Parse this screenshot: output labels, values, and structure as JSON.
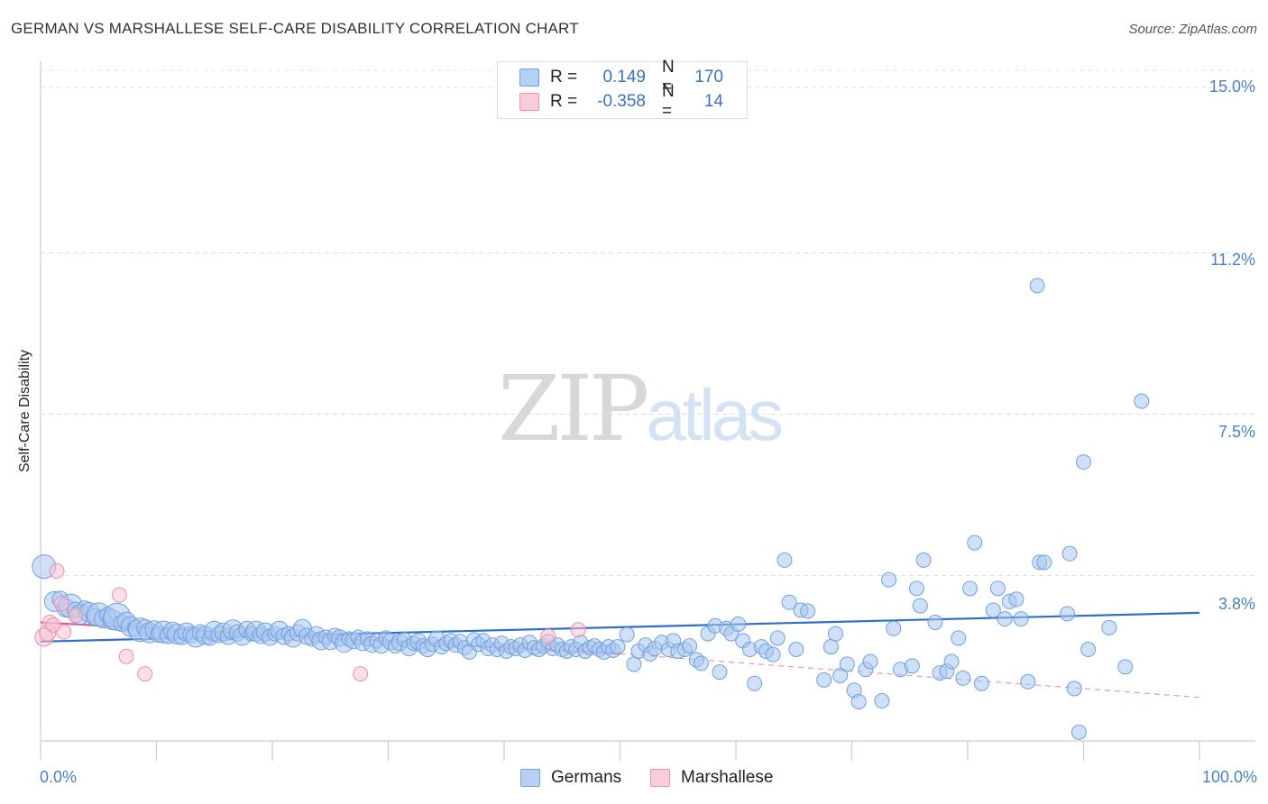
{
  "title": "GERMAN VS MARSHALLESE SELF-CARE DISABILITY CORRELATION CHART",
  "source": "Source: ZipAtlas.com",
  "watermark": {
    "zip": "ZIP",
    "atlas": "atlas"
  },
  "chart_data": {
    "type": "scatter",
    "title": "GERMAN VS MARSHALLESE SELF-CARE DISABILITY CORRELATION CHART",
    "xlabel": "",
    "ylabel": "Self-Care Disability",
    "xlim": [
      0,
      100
    ],
    "ylim": [
      0,
      15.5
    ],
    "y_ticks": [
      {
        "value": 15.0,
        "label": "15.0%"
      },
      {
        "value": 11.2,
        "label": "11.2%"
      },
      {
        "value": 7.5,
        "label": "7.5%"
      },
      {
        "value": 3.8,
        "label": "3.8%"
      }
    ],
    "x_tick_labels": {
      "left": "0.0%",
      "right": "100.0%"
    },
    "grid": true,
    "legend": [
      {
        "name": "Germans",
        "color": "#6fa0e0",
        "fill": "#aac7f0",
        "R_label": "R =",
        "R": "0.149",
        "N_label": "N =",
        "N": "170"
      },
      {
        "name": "Marshallese",
        "color": "#ec90ad",
        "fill": "#f7c3d3",
        "R_label": "R =",
        "R": "-0.358",
        "N_label": "N =",
        "N": "14"
      }
    ],
    "series": [
      {
        "name": "Germans",
        "color": "#6fa0e0",
        "trend": {
          "x": [
            0,
            100
          ],
          "y": [
            2.28,
            2.94
          ]
        },
        "points": [
          [
            0.3,
            4.0,
            14
          ],
          [
            1.2,
            3.2,
            12
          ],
          [
            1.7,
            3.25,
            10
          ],
          [
            2.2,
            3.05,
            11
          ],
          [
            2.6,
            3.1,
            14
          ],
          [
            3.0,
            3.0,
            10
          ],
          [
            3.4,
            2.9,
            12
          ],
          [
            3.8,
            3.05,
            9
          ],
          [
            4.2,
            2.95,
            12
          ],
          [
            4.6,
            2.85,
            10
          ],
          [
            5.0,
            2.9,
            14
          ],
          [
            5.4,
            2.8,
            11
          ],
          [
            5.8,
            2.88,
            10
          ],
          [
            6.2,
            2.78,
            12
          ],
          [
            6.6,
            2.85,
            16
          ],
          [
            7.0,
            2.7,
            10
          ],
          [
            7.4,
            2.75,
            11
          ],
          [
            7.8,
            2.62,
            12
          ],
          [
            8.2,
            2.58,
            10
          ],
          [
            8.6,
            2.55,
            14
          ],
          [
            9.0,
            2.6,
            10
          ],
          [
            9.4,
            2.48,
            12
          ],
          [
            9.8,
            2.55,
            11
          ],
          [
            10.2,
            2.45,
            10
          ],
          [
            10.6,
            2.5,
            13
          ],
          [
            11.0,
            2.42,
            10
          ],
          [
            11.4,
            2.52,
            11
          ],
          [
            11.8,
            2.45,
            12
          ],
          [
            12.2,
            2.4,
            10
          ],
          [
            12.6,
            2.5,
            11
          ],
          [
            13.0,
            2.44,
            10
          ],
          [
            13.4,
            2.38,
            12
          ],
          [
            13.8,
            2.48,
            10
          ],
          [
            14.2,
            2.42,
            11
          ],
          [
            14.6,
            2.36,
            9
          ],
          [
            15.0,
            2.52,
            12
          ],
          [
            15.4,
            2.44,
            10
          ],
          [
            15.8,
            2.5,
            11
          ],
          [
            16.2,
            2.4,
            10
          ],
          [
            16.6,
            2.55,
            12
          ],
          [
            17.0,
            2.48,
            10
          ],
          [
            17.4,
            2.4,
            11
          ],
          [
            17.8,
            2.56,
            10
          ],
          [
            18.2,
            2.46,
            9
          ],
          [
            18.6,
            2.52,
            12
          ],
          [
            19.0,
            2.42,
            10
          ],
          [
            19.4,
            2.5,
            11
          ],
          [
            19.8,
            2.38,
            10
          ],
          [
            20.2,
            2.46,
            9
          ],
          [
            20.6,
            2.54,
            11
          ],
          [
            21.0,
            2.4,
            10
          ],
          [
            21.4,
            2.46,
            9
          ],
          [
            21.8,
            2.36,
            11
          ],
          [
            22.2,
            2.48,
            10
          ],
          [
            22.6,
            2.58,
            11
          ],
          [
            23.0,
            2.4,
            10
          ],
          [
            23.4,
            2.34,
            9
          ],
          [
            23.8,
            2.44,
            10
          ],
          [
            24.2,
            2.3,
            11
          ],
          [
            24.6,
            2.38,
            9
          ],
          [
            25.0,
            2.28,
            10
          ],
          [
            25.4,
            2.42,
            9
          ],
          [
            25.8,
            2.36,
            10
          ],
          [
            26.2,
            2.24,
            11
          ],
          [
            26.6,
            2.34,
            9
          ],
          [
            27.0,
            2.3,
            10
          ],
          [
            27.4,
            2.38,
            9
          ],
          [
            27.8,
            2.26,
            10
          ],
          [
            28.2,
            2.34,
            9
          ],
          [
            28.6,
            2.22,
            10
          ],
          [
            29.0,
            2.3,
            9
          ],
          [
            29.4,
            2.2,
            10
          ],
          [
            29.8,
            2.36,
            9
          ],
          [
            30.2,
            2.28,
            10
          ],
          [
            30.6,
            2.18,
            9
          ],
          [
            31.0,
            2.26,
            10
          ],
          [
            31.4,
            2.32,
            9
          ],
          [
            31.8,
            2.14,
            10
          ],
          [
            32.2,
            2.24,
            9
          ],
          [
            32.6,
            2.28,
            10
          ],
          [
            33.0,
            2.18,
            9
          ],
          [
            33.4,
            2.12,
            10
          ],
          [
            33.8,
            2.22,
            9
          ],
          [
            34.2,
            2.34,
            10
          ],
          [
            34.6,
            2.16,
            9
          ],
          [
            35.0,
            2.24,
            9
          ],
          [
            35.4,
            2.3,
            9
          ],
          [
            35.8,
            2.2,
            9
          ],
          [
            36.2,
            2.28,
            9
          ],
          [
            36.6,
            2.14,
            9
          ],
          [
            37.0,
            2.04,
            9
          ],
          [
            37.4,
            2.32,
            9
          ],
          [
            37.8,
            2.22,
            9
          ],
          [
            38.2,
            2.3,
            9
          ],
          [
            38.6,
            2.12,
            9
          ],
          [
            39.0,
            2.2,
            9
          ],
          [
            39.4,
            2.1,
            9
          ],
          [
            39.8,
            2.24,
            9
          ],
          [
            40.2,
            2.06,
            9
          ],
          [
            40.6,
            2.16,
            9
          ],
          [
            41.0,
            2.12,
            9
          ],
          [
            41.4,
            2.2,
            9
          ],
          [
            41.8,
            2.08,
            9
          ],
          [
            42.2,
            2.26,
            9
          ],
          [
            42.6,
            2.14,
            9
          ],
          [
            43.0,
            2.1,
            9
          ],
          [
            43.4,
            2.18,
            9
          ],
          [
            43.8,
            2.28,
            9
          ],
          [
            44.2,
            2.12,
            9
          ],
          [
            44.6,
            2.2,
            9
          ],
          [
            45.0,
            2.1,
            9
          ],
          [
            45.4,
            2.06,
            9
          ],
          [
            45.8,
            2.16,
            9
          ],
          [
            46.2,
            2.1,
            9
          ],
          [
            46.6,
            2.26,
            9
          ],
          [
            47.0,
            2.06,
            9
          ],
          [
            47.4,
            2.14,
            9
          ],
          [
            47.8,
            2.18,
            9
          ],
          [
            48.2,
            2.1,
            9
          ],
          [
            48.6,
            2.04,
            9
          ],
          [
            49.0,
            2.16,
            9
          ],
          [
            49.4,
            2.08,
            9
          ],
          [
            49.8,
            2.16,
            9
          ],
          [
            50.6,
            2.44,
            9
          ],
          [
            51.2,
            1.76,
            9
          ],
          [
            51.6,
            2.06,
            9
          ],
          [
            52.2,
            2.2,
            9
          ],
          [
            52.6,
            2.0,
            9
          ],
          [
            53.0,
            2.12,
            9
          ],
          [
            53.6,
            2.26,
            9
          ],
          [
            54.2,
            2.1,
            9
          ],
          [
            54.6,
            2.3,
            9
          ],
          [
            55.0,
            2.06,
            9
          ],
          [
            55.6,
            2.1,
            9
          ],
          [
            56.0,
            2.18,
            9
          ],
          [
            56.6,
            1.86,
            9
          ],
          [
            57.0,
            1.78,
            9
          ],
          [
            57.6,
            2.46,
            9
          ],
          [
            58.2,
            2.64,
            9
          ],
          [
            58.6,
            1.58,
            9
          ],
          [
            59.2,
            2.58,
            9
          ],
          [
            59.6,
            2.46,
            9
          ],
          [
            60.2,
            2.68,
            9
          ],
          [
            60.6,
            2.3,
            9
          ],
          [
            61.2,
            2.1,
            9
          ],
          [
            61.6,
            1.32,
            9
          ],
          [
            62.2,
            2.16,
            9
          ],
          [
            62.6,
            2.06,
            9
          ],
          [
            63.2,
            1.98,
            9
          ],
          [
            63.6,
            2.36,
            9
          ],
          [
            64.2,
            4.15,
            9
          ],
          [
            64.6,
            3.18,
            9
          ],
          [
            65.2,
            2.1,
            9
          ],
          [
            65.6,
            3.0,
            9
          ],
          [
            66.2,
            2.98,
            9
          ],
          [
            67.6,
            1.4,
            9
          ],
          [
            68.2,
            2.16,
            9
          ],
          [
            68.6,
            2.46,
            9
          ],
          [
            69.0,
            1.5,
            9
          ],
          [
            69.6,
            1.76,
            9
          ],
          [
            70.2,
            1.16,
            9
          ],
          [
            70.6,
            0.9,
            9
          ],
          [
            71.2,
            1.64,
            9
          ],
          [
            71.6,
            1.82,
            9
          ],
          [
            72.6,
            0.92,
            9
          ],
          [
            73.2,
            3.7,
            9
          ],
          [
            73.6,
            2.58,
            9
          ],
          [
            74.2,
            1.64,
            9
          ],
          [
            75.2,
            1.72,
            9
          ],
          [
            75.6,
            3.5,
            9
          ],
          [
            75.9,
            3.1,
            9
          ],
          [
            76.2,
            4.15,
            9
          ],
          [
            77.2,
            2.72,
            9
          ],
          [
            77.6,
            1.56,
            9
          ],
          [
            78.2,
            1.6,
            9
          ],
          [
            78.6,
            1.82,
            9
          ],
          [
            79.2,
            2.36,
            9
          ],
          [
            79.6,
            1.44,
            9
          ],
          [
            80.2,
            3.5,
            9
          ],
          [
            80.6,
            4.55,
            9
          ],
          [
            81.2,
            1.32,
            9
          ],
          [
            82.2,
            3.0,
            9
          ],
          [
            82.6,
            3.5,
            9
          ],
          [
            83.2,
            2.8,
            9
          ],
          [
            83.6,
            3.2,
            9
          ],
          [
            84.2,
            3.25,
            9
          ],
          [
            84.6,
            2.8,
            9
          ],
          [
            85.2,
            1.36,
            9
          ],
          [
            86.2,
            4.1,
            9
          ],
          [
            86.6,
            4.1,
            9
          ],
          [
            88.6,
            2.92,
            9
          ],
          [
            88.8,
            4.3,
            9
          ],
          [
            89.2,
            1.2,
            9
          ],
          [
            89.6,
            0.2,
            9
          ],
          [
            90.0,
            6.4,
            9
          ],
          [
            90.4,
            2.1,
            9
          ],
          [
            92.2,
            2.6,
            9
          ],
          [
            93.6,
            1.7,
            9
          ],
          [
            95.0,
            7.8,
            9
          ],
          [
            86.0,
            10.45,
            9
          ]
        ]
      },
      {
        "name": "Marshallese",
        "color": "#ec90ad",
        "trend": {
          "x": [
            0,
            50
          ],
          "y": [
            2.72,
            2.0
          ]
        },
        "trend_extension": {
          "x": [
            50,
            100
          ],
          "y": [
            2.0,
            1.0
          ]
        },
        "points": [
          [
            0.3,
            2.38,
            11
          ],
          [
            0.6,
            2.48,
            10
          ],
          [
            0.8,
            2.72,
            9
          ],
          [
            1.1,
            2.66,
            9
          ],
          [
            1.4,
            3.9,
            9
          ],
          [
            1.8,
            3.15,
            9
          ],
          [
            2.0,
            2.5,
            9
          ],
          [
            3.0,
            2.88,
            9
          ],
          [
            6.8,
            3.35,
            9
          ],
          [
            7.4,
            1.94,
            9
          ],
          [
            9.0,
            1.54,
            9
          ],
          [
            27.6,
            1.54,
            9
          ],
          [
            43.8,
            2.4,
            9
          ],
          [
            46.4,
            2.55,
            9
          ]
        ]
      }
    ]
  }
}
